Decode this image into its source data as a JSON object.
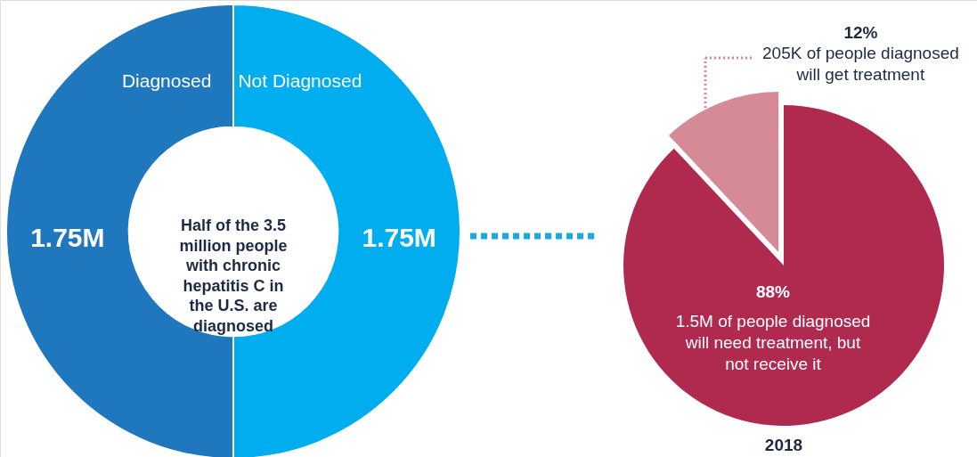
{
  "chart_data": [
    {
      "type": "donut",
      "categories": [
        "Diagnosed",
        "Not Diagnosed"
      ],
      "values": [
        1.75,
        1.75
      ],
      "colors": [
        "#1f77bd",
        "#00adee"
      ],
      "value_labels": [
        "1.75M",
        "1.75M"
      ],
      "annotations": [
        "Half of the 3.5 million people with chronic hepatitis C in the U.S. are diagnosed"
      ]
    },
    {
      "type": "pie",
      "categories": [
        "1.5M of people diagnosed will need treatment, but not receive it",
        "205K of people diagnosed will get treatment"
      ],
      "values": [
        88,
        12
      ],
      "colors": [
        "#b02a50",
        "#d58a96"
      ],
      "value_labels": [
        "88%",
        "12%"
      ],
      "annotations": [
        "2018"
      ]
    }
  ]
}
